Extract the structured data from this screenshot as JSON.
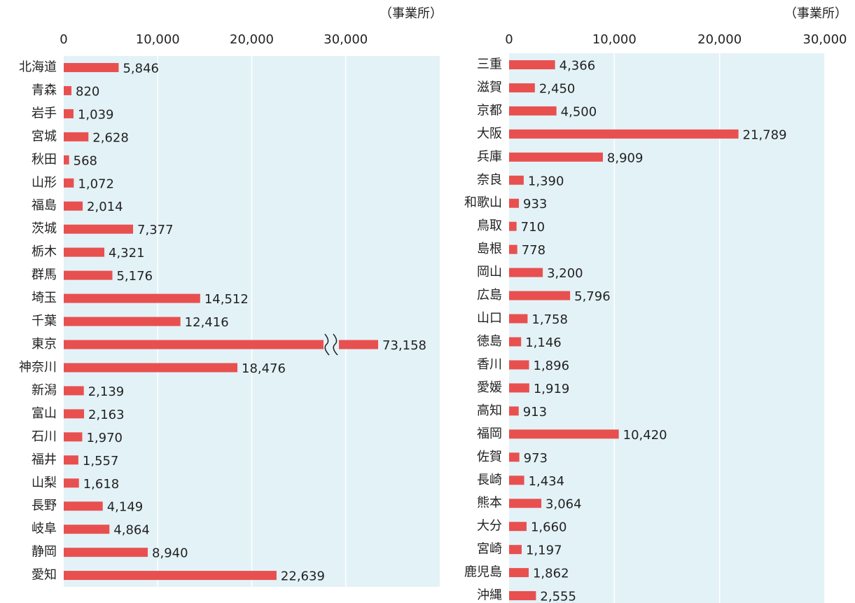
{
  "chart_data": [
    {
      "type": "bar",
      "orientation": "horizontal",
      "x_label": "（事業所）",
      "color": "#e85050",
      "categories": [
        "北海道",
        "青森",
        "岩手",
        "宮城",
        "秋田",
        "山形",
        "福島",
        "茨城",
        "栃木",
        "群馬",
        "埼玉",
        "千葉",
        "東京",
        "神奈川",
        "新潟",
        "富山",
        "石川",
        "福井",
        "山梨",
        "長野",
        "岐阜",
        "静岡",
        "愛知"
      ],
      "values": [
        5846,
        820,
        1039,
        2628,
        568,
        1072,
        2014,
        7377,
        4321,
        5176,
        14512,
        12416,
        73158,
        18476,
        2139,
        2163,
        1970,
        1557,
        1618,
        4149,
        4864,
        8940,
        22639
      ],
      "value_labels": [
        "5,846",
        "820",
        "1,039",
        "2,628",
        "568",
        "1,072",
        "2,014",
        "7,377",
        "4,321",
        "5,176",
        "14,512",
        "12,416",
        "73,158",
        "18,476",
        "2,139",
        "2,163",
        "1,970",
        "1,557",
        "1,618",
        "4,149",
        "4,864",
        "8,940",
        "22,639"
      ],
      "xlim": [
        0,
        40000
      ],
      "xticks": [
        0,
        {
          "value": 10000,
          "label": "10,000"
        },
        {
          "value": 20000,
          "label": "20,000"
        },
        {
          "value": 30000,
          "label": "30,000"
        }
      ],
      "grid": true
    },
    {
      "type": "bar",
      "orientation": "horizontal",
      "x_label": "（事業所）",
      "color": "#e85050",
      "categories": [
        "三重",
        "滋賀",
        "京都",
        "大阪",
        "兵庫",
        "奈良",
        "和歌山",
        "鳥取",
        "島根",
        "岡山",
        "広島",
        "山口",
        "徳島",
        "香川",
        "愛媛",
        "高知",
        "福岡",
        "佐賀",
        "長崎",
        "熊本",
        "大分",
        "宮崎",
        "鹿児島",
        "沖縄"
      ],
      "values": [
        4366,
        2450,
        4500,
        21789,
        8909,
        1390,
        933,
        710,
        778,
        3200,
        5796,
        1758,
        1146,
        1896,
        1919,
        913,
        10420,
        973,
        1434,
        3064,
        1660,
        1197,
        1862,
        2555
      ],
      "value_labels": [
        "4,366",
        "2,450",
        "4,500",
        "21,789",
        "8,909",
        "1,390",
        "933",
        "710",
        "778",
        "3,200",
        "5,796",
        "1,758",
        "1,146",
        "1,896",
        "1,919",
        "913",
        "10,420",
        "973",
        "1,434",
        "3,064",
        "1,660",
        "1,197",
        "1,862",
        "2,555"
      ],
      "xlim": [
        0,
        30000
      ],
      "xticks": [
        0,
        {
          "value": 10000,
          "label": "10,000"
        },
        {
          "value": 20000,
          "label": "20,000"
        },
        {
          "value": 30000,
          "label": "30,000"
        }
      ],
      "grid": true
    }
  ]
}
